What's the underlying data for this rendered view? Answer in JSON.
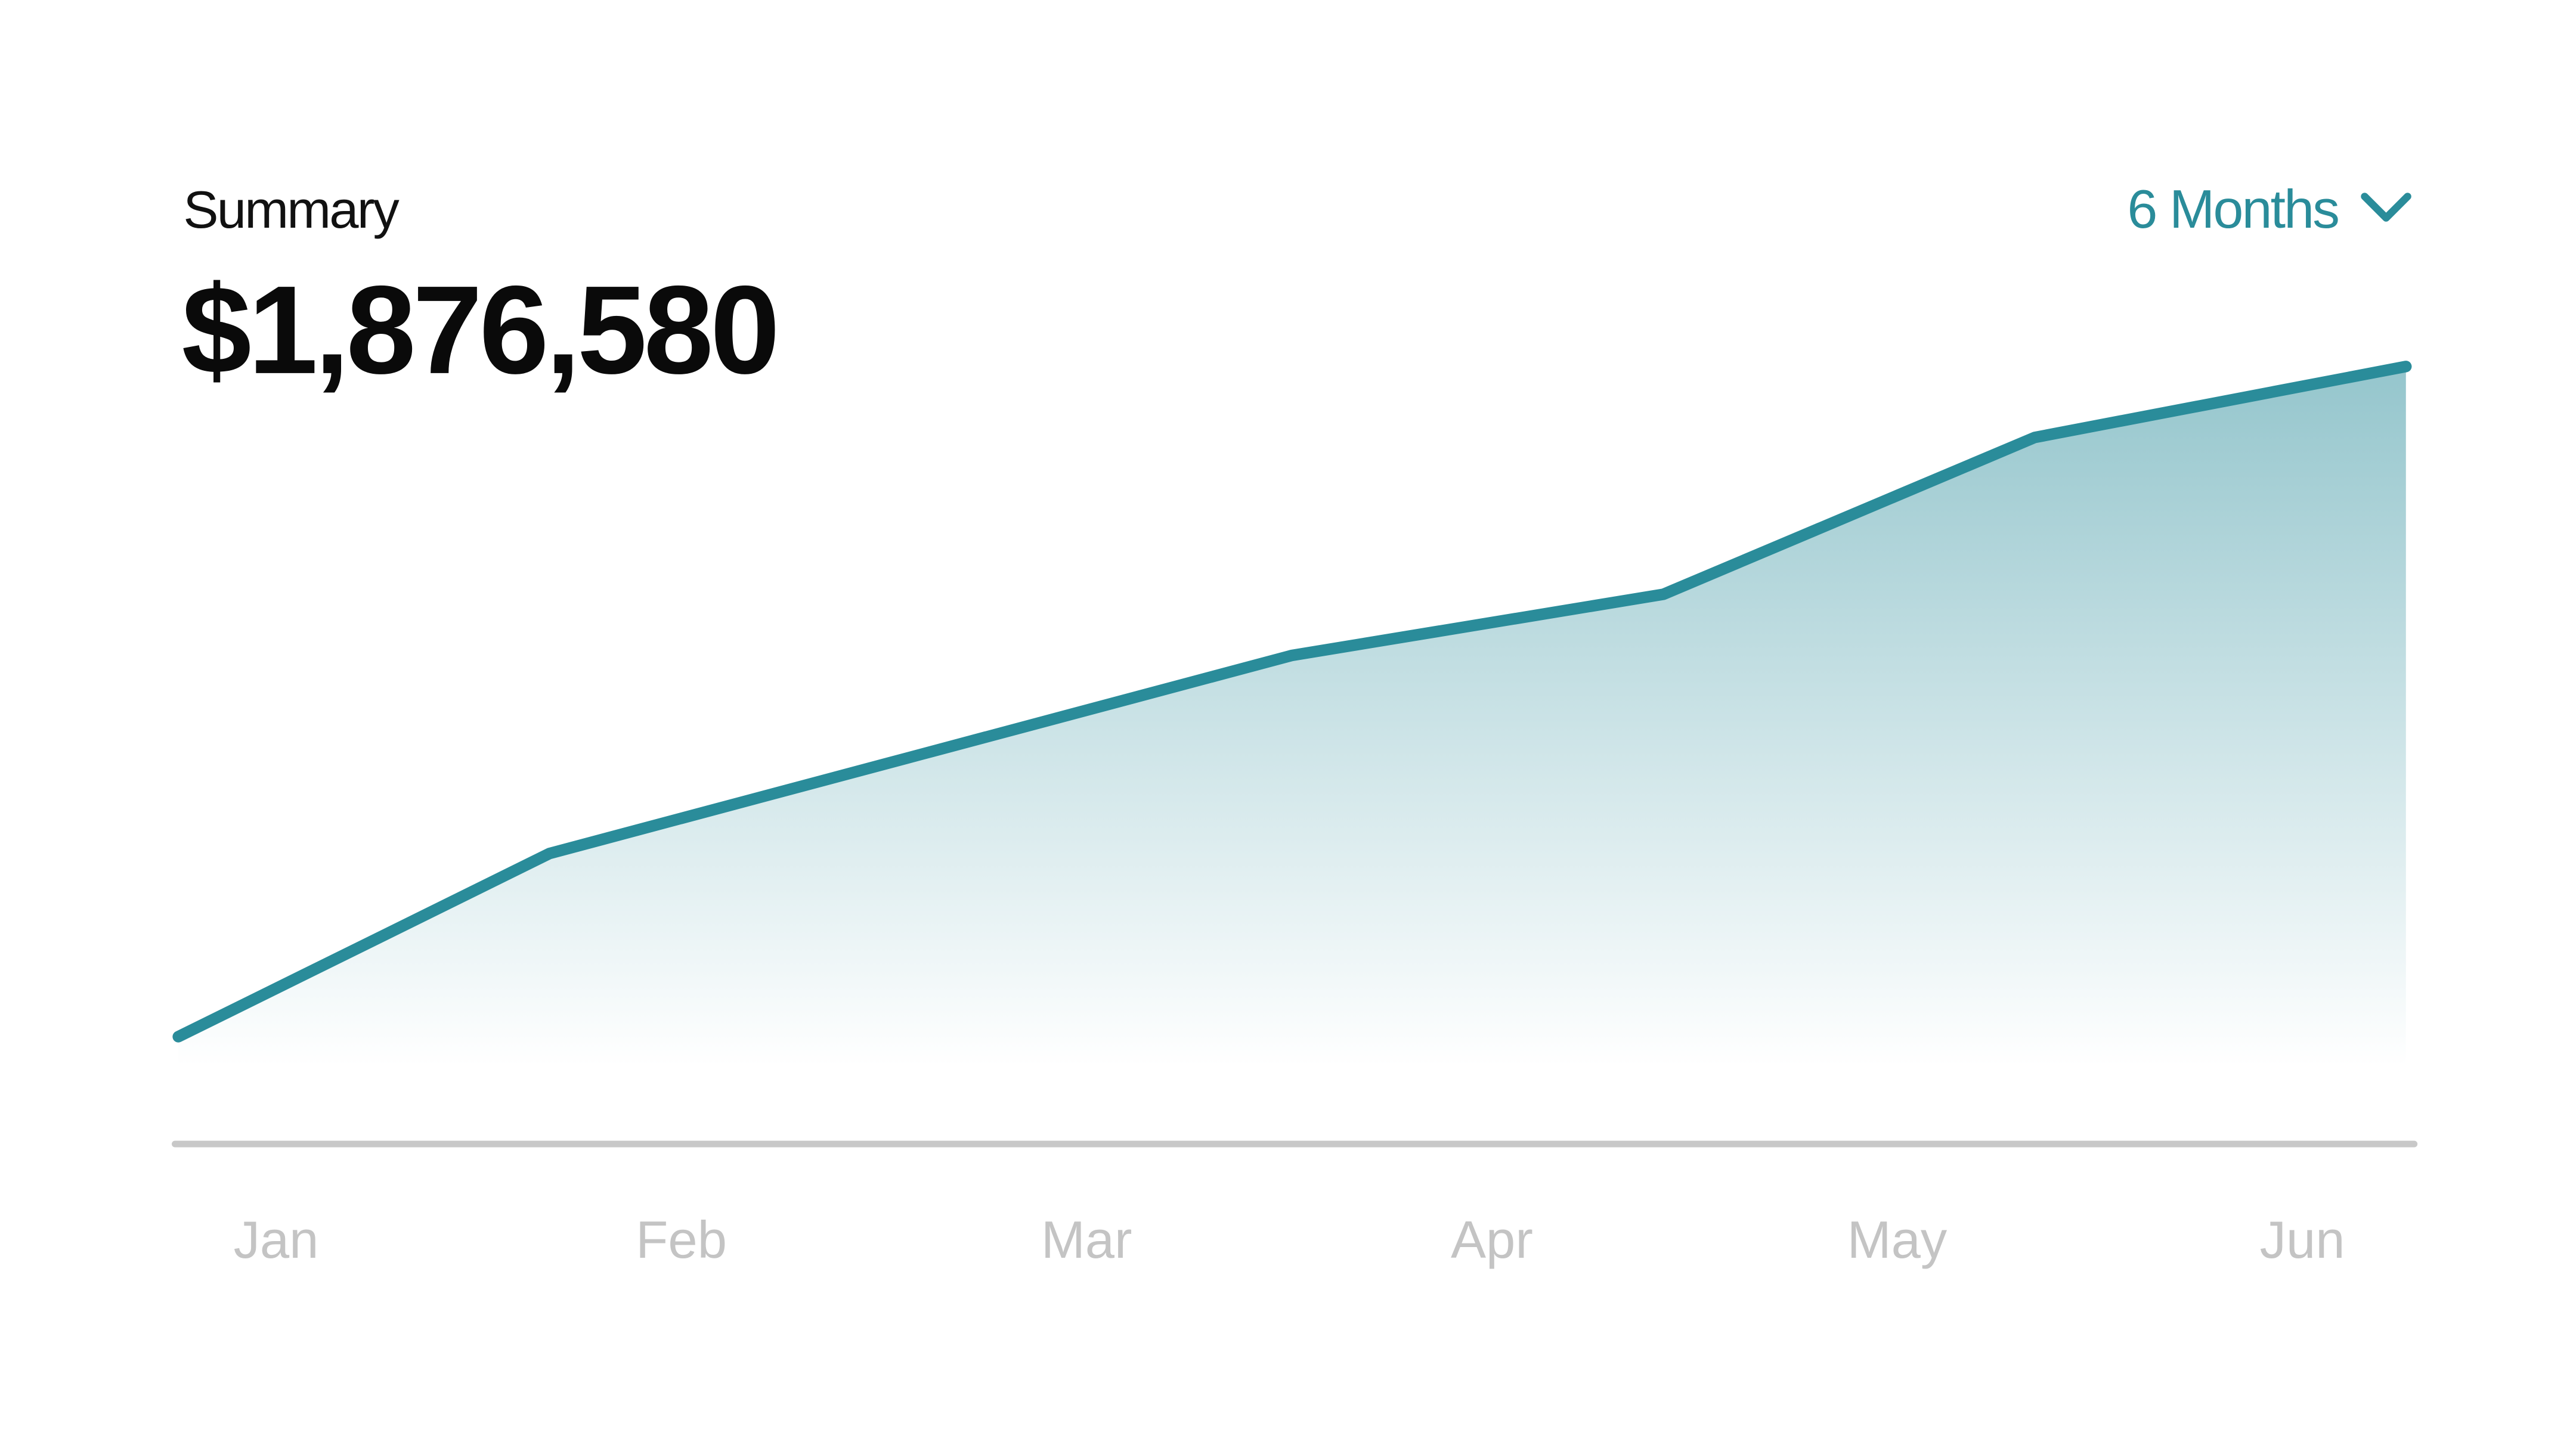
{
  "chart_data": {
    "type": "area",
    "title": "Summary",
    "subtitle": "$1,876,580",
    "range_selector": "6 Months",
    "categories": [
      "Jan",
      "Feb",
      "Mar",
      "Apr",
      "May",
      "Jun"
    ],
    "x": [
      0,
      1,
      2,
      3,
      4,
      5,
      6
    ],
    "xlim": [
      0,
      6
    ],
    "values": [
      65,
      176,
      236,
      296,
      333,
      428,
      471
    ],
    "ylim": [
      0,
      500
    ],
    "color": "#2a8c9a",
    "grid": false
  }
}
